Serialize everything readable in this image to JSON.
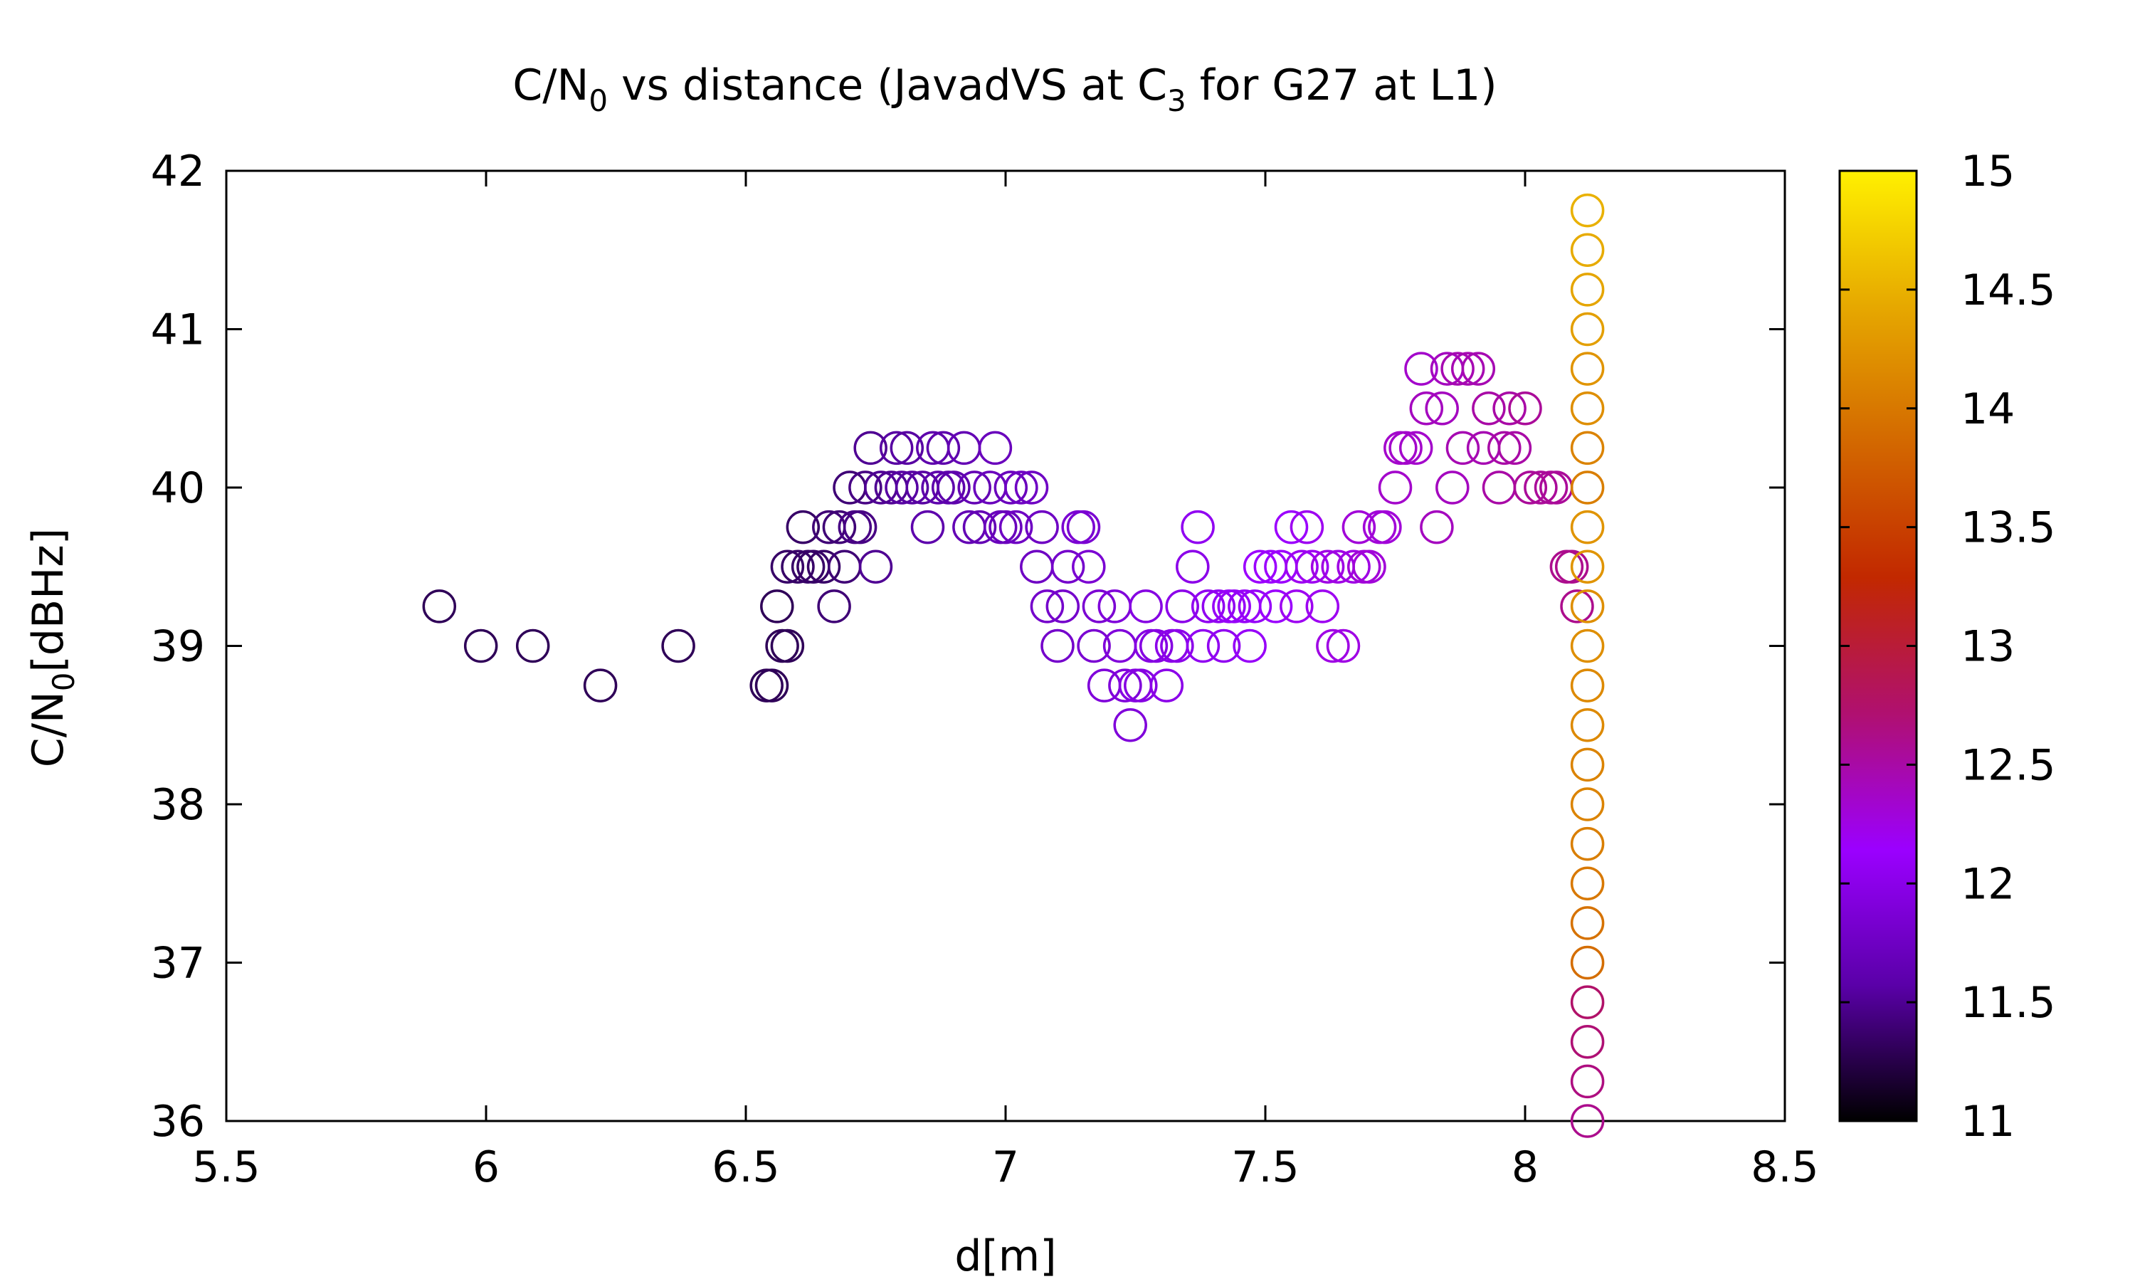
{
  "chart_data": {
    "type": "scatter",
    "title": {
      "prefix": "C/N",
      "sub": "0",
      "middle": " vs distance (JavadVS at C",
      "sub2": "3",
      "suffix": " for G27 at L1)"
    },
    "xlabel": "d[m]",
    "ylabel": {
      "prefix": "C/N",
      "sub": "0",
      "suffix": "[dBHz]"
    },
    "xlim": [
      5.5,
      8.5
    ],
    "ylim": [
      36,
      42
    ],
    "xticks": [
      "5.5",
      "6",
      "6.5",
      "7",
      "7.5",
      "8",
      "8.5"
    ],
    "yticks": [
      "36",
      "37",
      "38",
      "39",
      "40",
      "41",
      "42"
    ],
    "colorbar": {
      "range": [
        11,
        15
      ],
      "ticks": [
        "11",
        "11.5",
        "12",
        "12.5",
        "13",
        "13.5",
        "14",
        "14.5",
        "15"
      ],
      "palette": [
        "#000000",
        "#5a00a8",
        "#9b00ff",
        "#b01070",
        "#c22800",
        "#d36800",
        "#e6a800",
        "#fff000"
      ]
    },
    "points": [
      [
        5.91,
        39.25,
        11.3
      ],
      [
        5.99,
        39.0,
        11.3
      ],
      [
        6.09,
        39.0,
        11.3
      ],
      [
        6.22,
        38.75,
        11.3
      ],
      [
        6.37,
        39.0,
        11.3
      ],
      [
        6.54,
        38.75,
        11.3
      ],
      [
        6.55,
        38.75,
        11.3
      ],
      [
        6.56,
        39.25,
        11.3
      ],
      [
        6.57,
        39.0,
        11.3
      ],
      [
        6.58,
        39.0,
        11.3
      ],
      [
        6.58,
        39.5,
        11.35
      ],
      [
        6.6,
        39.5,
        11.35
      ],
      [
        6.61,
        39.75,
        11.35
      ],
      [
        6.62,
        39.5,
        11.35
      ],
      [
        6.63,
        39.5,
        11.35
      ],
      [
        6.65,
        39.5,
        11.35
      ],
      [
        6.66,
        39.75,
        11.4
      ],
      [
        6.67,
        39.25,
        11.4
      ],
      [
        6.68,
        39.75,
        11.4
      ],
      [
        6.69,
        39.5,
        11.4
      ],
      [
        6.7,
        40.0,
        11.4
      ],
      [
        6.71,
        39.75,
        11.45
      ],
      [
        6.72,
        39.75,
        11.45
      ],
      [
        6.73,
        40.0,
        11.45
      ],
      [
        6.74,
        40.25,
        11.5
      ],
      [
        6.75,
        39.5,
        11.5
      ],
      [
        6.76,
        40.0,
        11.5
      ],
      [
        6.78,
        40.0,
        11.5
      ],
      [
        6.79,
        40.25,
        11.55
      ],
      [
        6.8,
        40.0,
        11.55
      ],
      [
        6.81,
        40.25,
        11.55
      ],
      [
        6.82,
        40.0,
        11.55
      ],
      [
        6.84,
        40.0,
        11.55
      ],
      [
        6.85,
        39.75,
        11.6
      ],
      [
        6.86,
        40.25,
        11.6
      ],
      [
        6.87,
        40.0,
        11.6
      ],
      [
        6.88,
        40.25,
        11.6
      ],
      [
        6.89,
        40.0,
        11.6
      ],
      [
        6.9,
        40.0,
        11.6
      ],
      [
        6.92,
        40.25,
        11.65
      ],
      [
        6.93,
        39.75,
        11.65
      ],
      [
        6.94,
        40.0,
        11.65
      ],
      [
        6.95,
        39.75,
        11.65
      ],
      [
        6.97,
        40.0,
        11.7
      ],
      [
        6.98,
        40.25,
        11.7
      ],
      [
        6.99,
        39.75,
        11.7
      ],
      [
        7.0,
        39.75,
        11.7
      ],
      [
        7.01,
        40.0,
        11.7
      ],
      [
        7.02,
        39.75,
        11.75
      ],
      [
        7.03,
        40.0,
        11.75
      ],
      [
        7.05,
        40.0,
        11.75
      ],
      [
        7.06,
        39.5,
        11.75
      ],
      [
        7.07,
        39.75,
        11.75
      ],
      [
        7.08,
        39.25,
        11.8
      ],
      [
        7.1,
        39.0,
        11.8
      ],
      [
        7.11,
        39.25,
        11.8
      ],
      [
        7.12,
        39.5,
        11.8
      ],
      [
        7.14,
        39.75,
        11.85
      ],
      [
        7.15,
        39.75,
        11.85
      ],
      [
        7.16,
        39.5,
        11.85
      ],
      [
        7.17,
        39.0,
        11.85
      ],
      [
        7.18,
        39.25,
        11.85
      ],
      [
        7.19,
        38.75,
        11.9
      ],
      [
        7.21,
        39.25,
        11.9
      ],
      [
        7.22,
        39.0,
        11.9
      ],
      [
        7.23,
        38.75,
        11.9
      ],
      [
        7.24,
        38.5,
        11.9
      ],
      [
        7.25,
        38.75,
        11.95
      ],
      [
        7.26,
        38.75,
        11.95
      ],
      [
        7.27,
        39.25,
        11.95
      ],
      [
        7.28,
        39.0,
        11.95
      ],
      [
        7.29,
        39.0,
        11.95
      ],
      [
        7.31,
        38.75,
        12.0
      ],
      [
        7.32,
        39.0,
        12.0
      ],
      [
        7.33,
        39.0,
        12.0
      ],
      [
        7.34,
        39.25,
        12.0
      ],
      [
        7.36,
        39.5,
        12.0
      ],
      [
        7.37,
        39.75,
        12.05
      ],
      [
        7.38,
        39.0,
        12.05
      ],
      [
        7.39,
        39.25,
        12.05
      ],
      [
        7.41,
        39.25,
        12.05
      ],
      [
        7.42,
        39.0,
        12.05
      ],
      [
        7.43,
        39.25,
        12.1
      ],
      [
        7.44,
        39.25,
        12.1
      ],
      [
        7.46,
        39.25,
        12.1
      ],
      [
        7.47,
        39.0,
        12.1
      ],
      [
        7.48,
        39.25,
        12.1
      ],
      [
        7.49,
        39.5,
        12.15
      ],
      [
        7.51,
        39.5,
        12.15
      ],
      [
        7.52,
        39.25,
        12.15
      ],
      [
        7.53,
        39.5,
        12.15
      ],
      [
        7.55,
        39.75,
        12.15
      ],
      [
        7.56,
        39.25,
        12.2
      ],
      [
        7.57,
        39.5,
        12.2
      ],
      [
        7.58,
        39.75,
        12.2
      ],
      [
        7.59,
        39.5,
        12.2
      ],
      [
        7.61,
        39.25,
        12.2
      ],
      [
        7.62,
        39.5,
        12.25
      ],
      [
        7.63,
        39.0,
        12.25
      ],
      [
        7.64,
        39.5,
        12.25
      ],
      [
        7.65,
        39.0,
        12.25
      ],
      [
        7.67,
        39.5,
        12.25
      ],
      [
        7.68,
        39.75,
        12.3
      ],
      [
        7.69,
        39.5,
        12.3
      ],
      [
        7.7,
        39.5,
        12.3
      ],
      [
        7.72,
        39.75,
        12.3
      ],
      [
        7.73,
        39.75,
        12.3
      ],
      [
        7.75,
        40.0,
        12.35
      ],
      [
        7.76,
        40.25,
        12.35
      ],
      [
        7.77,
        40.25,
        12.35
      ],
      [
        7.79,
        40.25,
        12.35
      ],
      [
        7.8,
        40.75,
        12.35
      ],
      [
        7.81,
        40.5,
        12.4
      ],
      [
        7.83,
        39.75,
        12.4
      ],
      [
        7.84,
        40.5,
        12.4
      ],
      [
        7.85,
        40.75,
        12.4
      ],
      [
        7.86,
        40.0,
        12.4
      ],
      [
        7.87,
        40.75,
        12.45
      ],
      [
        7.88,
        40.25,
        12.45
      ],
      [
        7.89,
        40.75,
        12.45
      ],
      [
        7.91,
        40.75,
        12.45
      ],
      [
        7.92,
        40.25,
        12.45
      ],
      [
        7.93,
        40.5,
        12.5
      ],
      [
        7.95,
        40.0,
        12.5
      ],
      [
        7.96,
        40.25,
        12.5
      ],
      [
        7.97,
        40.5,
        12.5
      ],
      [
        7.98,
        40.25,
        12.5
      ],
      [
        8.0,
        40.5,
        12.55
      ],
      [
        8.01,
        40.0,
        12.55
      ],
      [
        8.03,
        40.0,
        12.55
      ],
      [
        8.05,
        40.0,
        12.55
      ],
      [
        8.06,
        40.0,
        12.55
      ],
      [
        8.08,
        39.5,
        12.6
      ],
      [
        8.09,
        39.5,
        12.6
      ],
      [
        8.1,
        39.25,
        12.6
      ],
      [
        8.12,
        36.0,
        12.6
      ],
      [
        8.12,
        36.25,
        12.65
      ],
      [
        8.12,
        36.5,
        12.7
      ],
      [
        8.12,
        36.75,
        12.75
      ],
      [
        8.12,
        37.0,
        13.9
      ],
      [
        8.12,
        37.25,
        13.95
      ],
      [
        8.12,
        37.5,
        14.0
      ],
      [
        8.12,
        37.75,
        14.05
      ],
      [
        8.12,
        38.0,
        14.1
      ],
      [
        8.12,
        38.25,
        14.1
      ],
      [
        8.12,
        38.5,
        14.15
      ],
      [
        8.12,
        38.75,
        14.15
      ],
      [
        8.12,
        39.0,
        14.2
      ],
      [
        8.12,
        39.25,
        14.2
      ],
      [
        8.12,
        39.5,
        14.25
      ],
      [
        8.12,
        39.75,
        14.25
      ],
      [
        8.12,
        40.0,
        14.05
      ],
      [
        8.12,
        40.25,
        14.1
      ],
      [
        8.12,
        40.5,
        14.2
      ],
      [
        8.12,
        40.75,
        14.25
      ],
      [
        8.12,
        41.0,
        14.35
      ],
      [
        8.12,
        41.25,
        14.4
      ],
      [
        8.12,
        41.5,
        14.45
      ],
      [
        8.12,
        41.75,
        14.5
      ]
    ]
  }
}
